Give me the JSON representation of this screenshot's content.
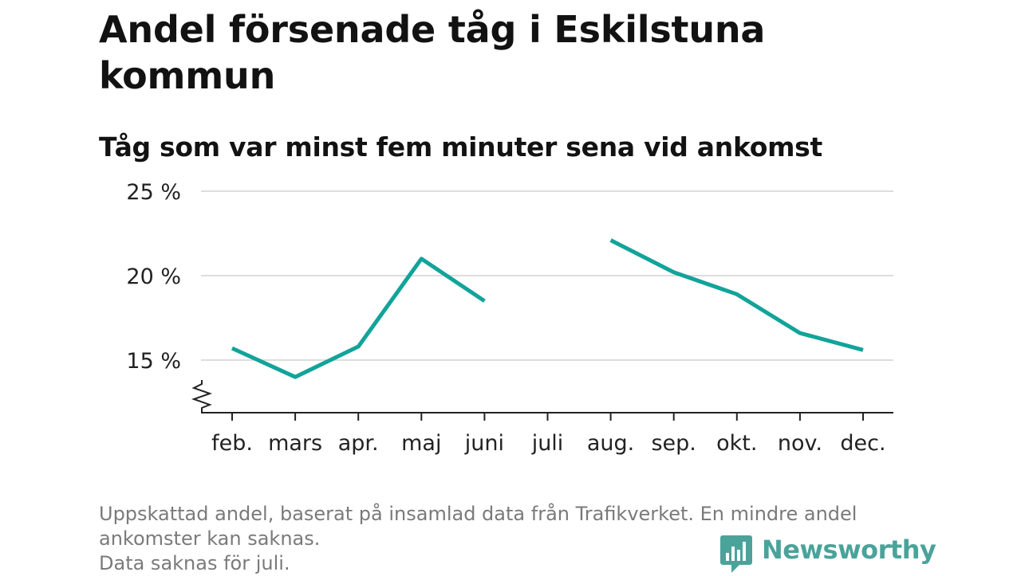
{
  "title": "Andel försenade tåg i Eskilstuna kommun",
  "subtitle": "Tåg som var minst fem minuter sena vid ankomst",
  "footnote": {
    "line1": "Uppskattad andel, baserat på insamlad data från Trafikverket. En mindre andel ankomster kan saknas.",
    "line2": "Data saknas för juli."
  },
  "brand": {
    "name": "Newsworthy",
    "icon": "newsworthy-bar-chart-icon",
    "color": "#4aa39a"
  },
  "colors": {
    "line": "#12a39a",
    "grid": "#dddddd",
    "axis": "#222222"
  },
  "chart_data": {
    "type": "line",
    "categories": [
      "feb.",
      "mars",
      "apr.",
      "maj",
      "juni",
      "juli",
      "aug.",
      "sep.",
      "okt.",
      "nov.",
      "dec."
    ],
    "series": [
      {
        "values": [
          15.7,
          14.0,
          15.8,
          21.0,
          18.5,
          null,
          22.1,
          20.2,
          18.9,
          16.6,
          15.6
        ]
      }
    ],
    "yticks": [
      {
        "value": 15,
        "label": "15 %"
      },
      {
        "value": 20,
        "label": "20 %"
      },
      {
        "value": 25,
        "label": "25 %"
      }
    ],
    "ylim": [
      12,
      25
    ],
    "y_axis_break": true,
    "grid": "horizontal",
    "xlabel": "",
    "ylabel": ""
  }
}
